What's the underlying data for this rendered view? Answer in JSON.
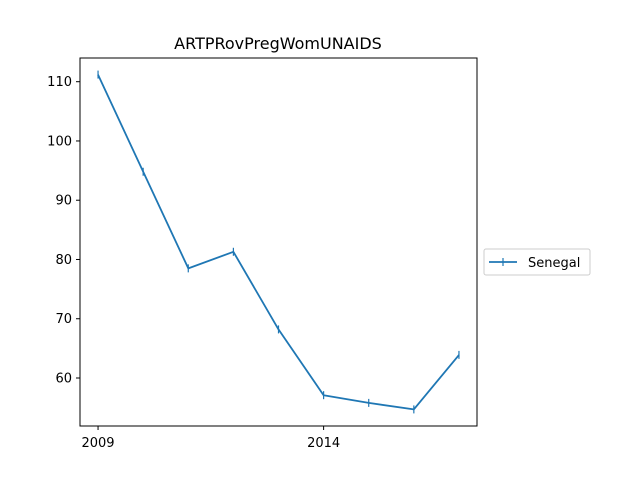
{
  "chart_data": {
    "type": "line",
    "title": "ARTPRovPregWomUNAIDS",
    "xlabel": "",
    "ylabel": "",
    "x": [
      2009,
      2010,
      2011,
      2012,
      2013,
      2014,
      2015,
      2016,
      2017
    ],
    "series": [
      {
        "name": "Senegal",
        "values": [
          111.2,
          94.8,
          78.5,
          81.3,
          68.2,
          57.1,
          55.8,
          54.7,
          63.9
        ],
        "color": "#1f77b4",
        "marker": "vertical-tick"
      }
    ],
    "xlim": [
      2008.6,
      2017.4
    ],
    "ylim": [
      51.9,
      114.0
    ],
    "xticks": [
      2009,
      2014
    ],
    "xtick_labels": [
      "2009",
      "2014"
    ],
    "yticks": [
      60,
      70,
      80,
      90,
      100,
      110
    ],
    "ytick_labels": [
      "60",
      "70",
      "80",
      "90",
      "100",
      "110"
    ],
    "grid": false,
    "legend_position": "outside-right"
  }
}
